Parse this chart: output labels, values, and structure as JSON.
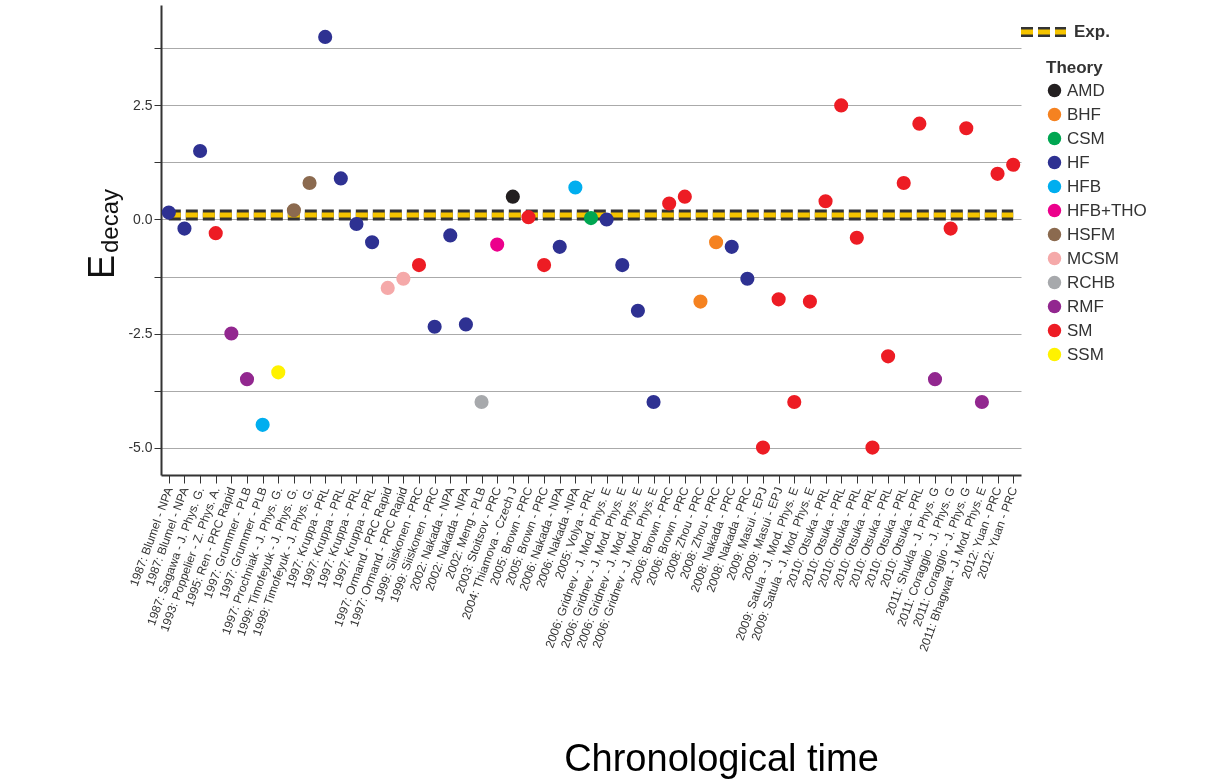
{
  "chart_data": {
    "type": "scatter",
    "ylabel": "E$_{decay}$",
    "xlabel": "Chronological time",
    "legend_title": "Theory",
    "legend": "top right",
    "grid": "y",
    "ylim": [
      -5.6,
      4.7
    ],
    "yticks": [
      {
        "value": -5,
        "label": "-5.0"
      },
      {
        "value": -3.75,
        "label": null
      },
      -2.5,
      {
        "value": -1.25,
        "label": null
      },
      {
        "value": 0,
        "label": "0.0"
      },
      {
        "value": 1.25,
        "label": null
      },
      2.5,
      {
        "value": 3.75,
        "label": null
      }
    ],
    "categories": [
      "1987: Blumel - NPA",
      "1987: Blumel - NPA",
      "1987: Sagawa - J. Phys. G.",
      "1993: Poppelier - Z. Phys. A.",
      "1995: Ren - PRC Rapid",
      "1997: Grummer - PLB",
      "1997: Grummer - PLB",
      "1997: Prochniak - J. Phys. G.",
      "1999: Timofeyuk - J. Phys. G.",
      "1999: Timofeyuk - J. Phys. G.",
      "1997: Kruppa - PRL",
      "1997: Kruppa - PRL",
      "1997: Kruppa - PRL",
      "1997: Kruppa - PRL",
      "1997: Ormand - PRC Rapid",
      "1997: Ormand - PRC Rapid",
      "1999: Siiskonen - PRC",
      "1999: Siiskonen - PRC",
      "2002: Nakada - NPA",
      "2002: Nakada - NPA",
      "2002: Meng - PLB",
      "2003: Stoitsov - PRC",
      "2004: Thiamova - Czech J",
      "2005: Brown - PRC",
      "2005: Brown - PRC",
      "2006: Nakada - NPA",
      "2006: Nakada -NPA",
      "2005: Volya - PRL",
      "2006: Gridnev - J. Mod. Phys. E",
      "2006: Gridnev - J. Mod. Phys. E",
      "2006: Gridnev - J. Mod. Phys. E",
      "2006: Gridnev - J. Mod. Phys. E",
      "2006: Brown - PRC",
      "2006: Brown - PRC",
      "2008: Zhou - PRC",
      "2008: Zhou - PRC",
      "2008: Nakada - PRC",
      "2008: Nakada - PRC",
      "2009: Masui - EPJ",
      "2009: Masui - EPJ",
      "2009: Satula - J. Mod. Phys. E",
      "2009: Satula - J. Mod. Phys. E",
      "2010: Otsuka - PRL",
      "2010: Otsuka - PRL",
      "2010: Otsuka - PRL",
      "2010: Otsuka - PRL",
      "2010: Otsuka - PRL",
      "2010: Otsuka - PRL",
      "2010: Otsuka - PRL",
      "2011: Shukla - J. Phys. G",
      "2011: Coraggio - J. Phys. G",
      "2011: Coraggio - J. Phys. G",
      "2011: Bhagwat - J. Mod. Phys. E",
      "2012: Yuan - PRC",
      "2012: Yuan - PRC"
    ],
    "series": [
      {
        "name": "Exp.",
        "type": "line",
        "color": "#f5c400",
        "line_style": "dashed",
        "values": [
          0.1,
          0.1,
          0.1,
          0.1,
          0.1,
          0.1,
          0.1,
          0.1,
          0.1,
          0.1,
          0.1,
          0.1,
          0.1,
          0.1,
          0.1,
          0.1,
          0.1,
          0.1,
          0.1,
          0.1,
          0.1,
          0.1,
          0.1,
          0.1,
          0.1,
          0.1,
          0.1,
          0.1,
          0.1,
          0.1,
          0.1,
          0.1,
          0.1,
          0.1,
          0.1,
          0.1,
          0.1,
          0.1,
          0.1,
          0.1,
          0.1,
          0.1,
          0.1,
          0.1,
          0.1,
          0.1,
          0.1,
          0.1,
          0.1,
          0.1,
          0.1,
          0.1,
          0.1,
          0.1,
          0.1
        ]
      },
      {
        "name": "AMD",
        "color": "#231f20",
        "values": [
          null,
          null,
          null,
          null,
          null,
          null,
          null,
          null,
          null,
          null,
          null,
          null,
          null,
          null,
          null,
          null,
          null,
          null,
          null,
          null,
          null,
          null,
          0.5,
          null,
          null,
          null,
          null,
          null,
          null,
          null,
          null,
          null,
          null,
          null,
          null,
          null,
          null,
          null,
          null,
          null,
          null,
          null,
          null,
          null,
          null,
          null,
          null,
          null,
          null,
          null,
          null,
          null,
          null,
          null,
          null
        ]
      },
      {
        "name": "BHF",
        "color": "#f58220",
        "values": [
          null,
          null,
          null,
          null,
          null,
          null,
          null,
          null,
          null,
          null,
          null,
          null,
          null,
          null,
          null,
          null,
          null,
          null,
          null,
          null,
          null,
          null,
          null,
          null,
          null,
          null,
          null,
          null,
          null,
          null,
          null,
          null,
          null,
          null,
          -1.8,
          -0.5,
          null,
          null,
          null,
          null,
          null,
          null,
          null,
          null,
          null,
          null,
          null,
          null,
          null,
          null,
          null,
          null,
          null,
          null,
          null
        ]
      },
      {
        "name": "CSM",
        "color": "#00a651",
        "values": [
          null,
          null,
          null,
          null,
          null,
          null,
          null,
          null,
          null,
          null,
          null,
          null,
          null,
          null,
          null,
          null,
          null,
          null,
          null,
          null,
          null,
          null,
          null,
          null,
          null,
          null,
          null,
          0.03,
          null,
          null,
          null,
          null,
          null,
          null,
          null,
          null,
          null,
          null,
          null,
          null,
          null,
          null,
          null,
          null,
          null,
          null,
          null,
          null,
          null,
          null,
          null,
          null,
          null,
          null,
          null
        ]
      },
      {
        "name": "HF",
        "color": "#2e3192",
        "values": [
          0.15,
          -0.2,
          1.5,
          null,
          null,
          null,
          null,
          null,
          null,
          null,
          4.0,
          0.9,
          -0.1,
          -0.5,
          null,
          null,
          null,
          -2.35,
          -0.35,
          -2.3,
          null,
          null,
          null,
          null,
          null,
          -0.6,
          null,
          null,
          0.0,
          -1.0,
          -2.0,
          -4.0,
          null,
          null,
          null,
          null,
          -0.6,
          -1.3,
          null,
          null,
          null,
          null,
          null,
          null,
          null,
          null,
          null,
          null,
          null,
          null,
          null,
          null,
          null,
          null,
          null
        ]
      },
      {
        "name": "HFB",
        "color": "#00aeef",
        "values": [
          null,
          null,
          null,
          null,
          null,
          null,
          -4.5,
          null,
          null,
          null,
          null,
          null,
          null,
          null,
          null,
          null,
          null,
          null,
          null,
          null,
          null,
          null,
          null,
          null,
          null,
          null,
          0.7,
          null,
          null,
          null,
          null,
          null,
          null,
          null,
          null,
          null,
          null,
          null,
          null,
          null,
          null,
          null,
          null,
          null,
          null,
          null,
          null,
          null,
          null,
          null,
          null,
          null,
          null,
          null,
          null
        ]
      },
      {
        "name": "HFB+THO",
        "color": "#ec008c",
        "values": [
          null,
          null,
          null,
          null,
          null,
          null,
          null,
          null,
          null,
          null,
          null,
          null,
          null,
          null,
          null,
          null,
          null,
          null,
          null,
          null,
          null,
          -0.55,
          null,
          null,
          null,
          null,
          null,
          null,
          null,
          null,
          null,
          null,
          null,
          null,
          null,
          null,
          null,
          null,
          null,
          null,
          null,
          null,
          null,
          null,
          null,
          null,
          null,
          null,
          null,
          null,
          null,
          null,
          null,
          null,
          null
        ]
      },
      {
        "name": "HSFM",
        "color": "#8b6a4f",
        "values": [
          null,
          null,
          null,
          null,
          null,
          null,
          null,
          null,
          0.2,
          0.8,
          null,
          null,
          null,
          null,
          null,
          null,
          null,
          null,
          null,
          null,
          null,
          null,
          null,
          null,
          null,
          null,
          null,
          null,
          null,
          null,
          null,
          null,
          null,
          null,
          null,
          null,
          null,
          null,
          null,
          null,
          null,
          null,
          null,
          null,
          null,
          null,
          null,
          null,
          null,
          null,
          null,
          null,
          null,
          null,
          null
        ]
      },
      {
        "name": "MCSM",
        "color": "#f5a9a9",
        "values": [
          null,
          null,
          null,
          null,
          null,
          null,
          null,
          null,
          null,
          null,
          null,
          null,
          null,
          null,
          -1.5,
          -1.3,
          null,
          null,
          null,
          null,
          null,
          null,
          null,
          null,
          null,
          null,
          null,
          null,
          null,
          null,
          null,
          null,
          null,
          null,
          null,
          null,
          null,
          null,
          null,
          null,
          null,
          null,
          null,
          null,
          null,
          null,
          null,
          null,
          null,
          null,
          null,
          null,
          null,
          null,
          null
        ]
      },
      {
        "name": "RCHB",
        "color": "#a7a9ac",
        "values": [
          null,
          null,
          null,
          null,
          null,
          null,
          null,
          null,
          null,
          null,
          null,
          null,
          null,
          null,
          null,
          null,
          null,
          null,
          null,
          null,
          -4.0,
          null,
          null,
          null,
          null,
          null,
          null,
          null,
          null,
          null,
          null,
          null,
          null,
          null,
          null,
          null,
          null,
          null,
          null,
          null,
          null,
          null,
          null,
          null,
          null,
          null,
          null,
          null,
          null,
          null,
          null,
          null,
          null,
          null,
          null
        ]
      },
      {
        "name": "RMF",
        "color": "#92278f",
        "values": [
          null,
          null,
          null,
          null,
          -2.5,
          -3.5,
          null,
          null,
          null,
          null,
          null,
          null,
          null,
          null,
          null,
          null,
          null,
          null,
          null,
          null,
          null,
          null,
          null,
          null,
          null,
          null,
          null,
          null,
          null,
          null,
          null,
          null,
          null,
          null,
          null,
          null,
          null,
          null,
          null,
          null,
          null,
          null,
          null,
          null,
          null,
          null,
          null,
          null,
          null,
          -3.5,
          null,
          null,
          -4.0,
          null,
          null
        ]
      },
      {
        "name": "SM",
        "color": "#ed1c24",
        "values": [
          null,
          null,
          null,
          -0.3,
          null,
          null,
          null,
          null,
          null,
          null,
          null,
          null,
          null,
          null,
          null,
          null,
          -1.0,
          null,
          null,
          null,
          null,
          null,
          null,
          0.05,
          -1.0,
          null,
          null,
          null,
          null,
          null,
          null,
          null,
          0.35,
          0.5,
          null,
          null,
          null,
          null,
          -5.0,
          -1.75,
          -4.0,
          -1.8,
          0.4,
          2.5,
          -0.4,
          -5.0,
          -3.0,
          0.8,
          2.1,
          null,
          -0.2,
          2.0,
          null,
          1.0,
          1.2
        ]
      },
      {
        "name": "SSM",
        "color": "#fff200",
        "values": [
          null,
          null,
          null,
          null,
          null,
          null,
          null,
          -3.35,
          null,
          null,
          null,
          null,
          null,
          null,
          null,
          null,
          null,
          null,
          null,
          null,
          null,
          null,
          null,
          null,
          null,
          null,
          null,
          null,
          null,
          null,
          null,
          null,
          null,
          null,
          null,
          null,
          null,
          null,
          null,
          null,
          null,
          null,
          null,
          null,
          null,
          null,
          null,
          null,
          null,
          null,
          null,
          null,
          null,
          null,
          null
        ]
      }
    ]
  }
}
